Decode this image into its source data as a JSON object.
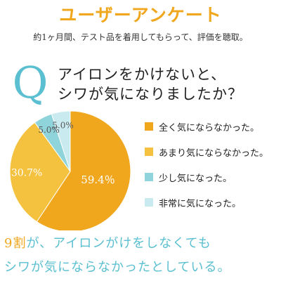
{
  "header": {
    "title": "ユーザーアンケート",
    "subtitle": "約1ヶ月間、テスト品を着用してもらって、評価を聴取。"
  },
  "question": {
    "mark": "Q",
    "line1": "アイロンをかけないと、",
    "line2": "シワが気になりましたか？"
  },
  "chart_data": {
    "type": "pie",
    "categories": [
      "全く気にならなかった。",
      "あまり気にならなかった。",
      "少し気になった。",
      "非常に気になった。"
    ],
    "values": [
      59.4,
      30.7,
      5.0,
      5.0
    ],
    "labels": [
      "59.4％",
      "30.7%",
      "5.0%",
      "5.0%"
    ],
    "colors": [
      "#F0A71E",
      "#F4C23E",
      "#8FD3DB",
      "#C9EBEF"
    ],
    "label_colors": [
      "#ffffff",
      "#ffffff",
      "#555555",
      "#555555"
    ],
    "legend_position": "right",
    "start_angle_deg": 0,
    "direction": "clockwise"
  },
  "conclusion": {
    "line1_accent": "9割",
    "line1_rest": "が、アイロンがけをしなくても",
    "line2": "シワが気にならなかったとしている。"
  }
}
